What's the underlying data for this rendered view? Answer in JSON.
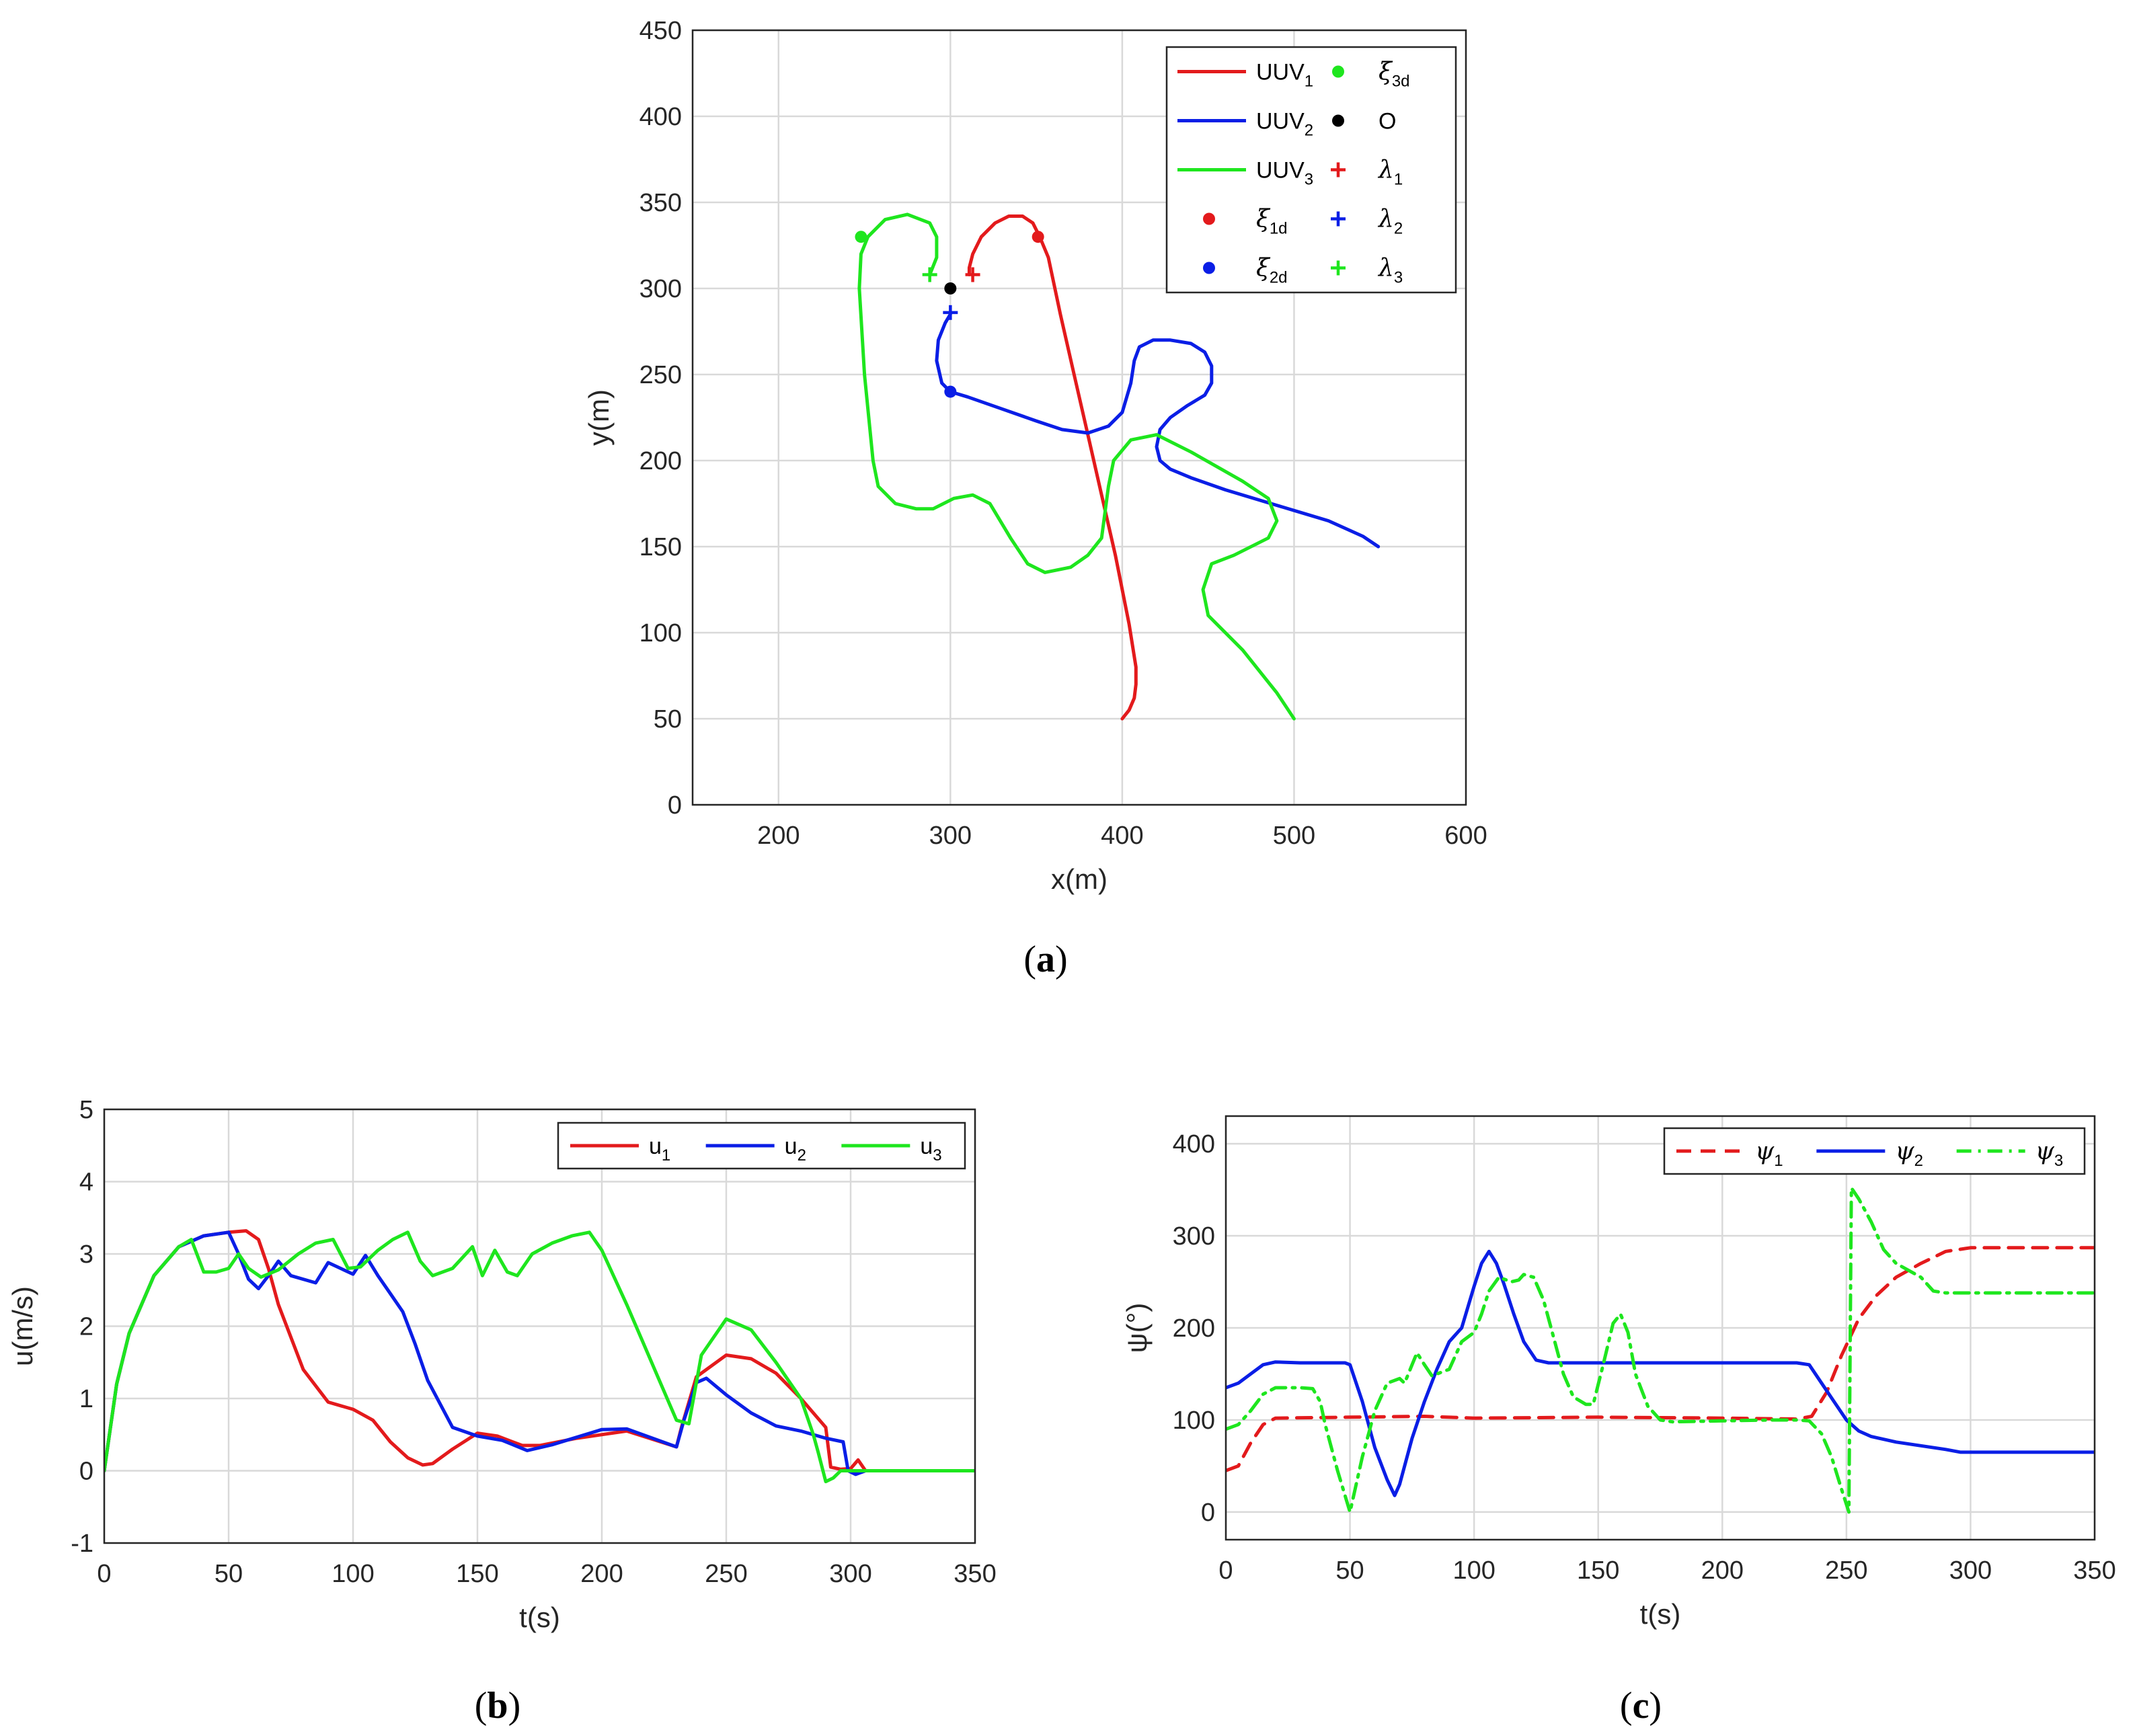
{
  "figure": {
    "colors": {
      "red": "#e31a1c",
      "blue": "#0a1ee6",
      "green": "#1ee61e",
      "black": "#000000"
    }
  },
  "chart_data": [
    {
      "id": "a",
      "type": "line",
      "caption": "a",
      "xlabel": "x(m)",
      "ylabel": "y(m)",
      "xlim": [
        150,
        600
      ],
      "ylim": [
        0,
        450
      ],
      "xticks": [
        200,
        300,
        400,
        500,
        600
      ],
      "yticks": [
        0,
        50,
        100,
        150,
        200,
        250,
        300,
        350,
        400,
        450
      ],
      "grid": true,
      "legend_position": "top-right",
      "legend": [
        {
          "label": "UUV",
          "sub": "1",
          "kind": "line",
          "color": "#e31a1c"
        },
        {
          "label": "UUV",
          "sub": "2",
          "kind": "line",
          "color": "#0a1ee6"
        },
        {
          "label": "UUV",
          "sub": "3",
          "kind": "line",
          "color": "#1ee61e"
        },
        {
          "label": "ξ",
          "sub": "1d",
          "kind": "dot",
          "color": "#e31a1c"
        },
        {
          "label": "ξ",
          "sub": "2d",
          "kind": "dot",
          "color": "#0a1ee6"
        },
        {
          "label": "ξ",
          "sub": "3d",
          "kind": "dot",
          "color": "#1ee61e"
        },
        {
          "label": "O",
          "sub": "",
          "kind": "dot",
          "color": "#000000"
        },
        {
          "label": "λ",
          "sub": "1",
          "kind": "plus",
          "color": "#e31a1c"
        },
        {
          "label": "λ",
          "sub": "2",
          "kind": "plus",
          "color": "#0a1ee6"
        },
        {
          "label": "λ",
          "sub": "3",
          "kind": "plus",
          "color": "#1ee61e"
        }
      ],
      "series": [
        {
          "name": "UUV1",
          "color": "#e31a1c",
          "x": [
            400,
            404,
            407,
            408,
            408,
            404,
            396,
            388,
            380,
            372,
            364,
            357,
            352,
            348,
            342,
            334,
            326,
            318,
            313,
            311,
            311
          ],
          "y": [
            50,
            55,
            62,
            70,
            80,
            105,
            145,
            180,
            215,
            250,
            285,
            318,
            330,
            338,
            342,
            342,
            338,
            330,
            320,
            312,
            308
          ]
        },
        {
          "name": "UUV2",
          "color": "#0a1ee6",
          "x": [
            549,
            540,
            520,
            490,
            460,
            440,
            428,
            422,
            420,
            422,
            428,
            438,
            448,
            452,
            452,
            448,
            440,
            428,
            418,
            410,
            407,
            405,
            400,
            392,
            380,
            365,
            350,
            330,
            310,
            300,
            295,
            292,
            293,
            297,
            300
          ],
          "y": [
            150,
            156,
            165,
            174,
            183,
            190,
            195,
            200,
            208,
            218,
            225,
            232,
            238,
            245,
            255,
            263,
            268,
            270,
            270,
            266,
            258,
            245,
            228,
            220,
            216,
            218,
            223,
            230,
            237,
            240,
            245,
            258,
            270,
            280,
            285
          ]
        },
        {
          "name": "UUV3",
          "color": "#1ee61e",
          "x": [
            500,
            490,
            470,
            450,
            447,
            452,
            465,
            485,
            490,
            485,
            470,
            440,
            420,
            405,
            395,
            392,
            388,
            380,
            370,
            355,
            345,
            335,
            323,
            313,
            302,
            290,
            280,
            268,
            258,
            255,
            250,
            247,
            248,
            252,
            262,
            275,
            288,
            292,
            292,
            288
          ],
          "y": [
            50,
            65,
            90,
            110,
            125,
            140,
            145,
            155,
            165,
            178,
            188,
            205,
            215,
            212,
            200,
            185,
            155,
            145,
            138,
            135,
            140,
            155,
            175,
            180,
            178,
            172,
            172,
            175,
            185,
            200,
            250,
            300,
            320,
            330,
            340,
            343,
            338,
            330,
            318,
            308
          ]
        }
      ],
      "markers": [
        {
          "name": "xi-1d",
          "kind": "dot",
          "color": "#e31a1c",
          "x": 351,
          "y": 330
        },
        {
          "name": "xi-2d",
          "kind": "dot",
          "color": "#0a1ee6",
          "x": 300,
          "y": 240
        },
        {
          "name": "xi-3d",
          "kind": "dot",
          "color": "#1ee61e",
          "x": 248,
          "y": 330
        },
        {
          "name": "origin-O",
          "kind": "dot",
          "color": "#000000",
          "x": 300,
          "y": 300
        },
        {
          "name": "lambda-1",
          "kind": "plus",
          "color": "#e31a1c",
          "x": 313,
          "y": 308
        },
        {
          "name": "lambda-2",
          "kind": "plus",
          "color": "#0a1ee6",
          "x": 300,
          "y": 286
        },
        {
          "name": "lambda-3",
          "kind": "plus",
          "color": "#1ee61e",
          "x": 288,
          "y": 308
        }
      ]
    },
    {
      "id": "b",
      "type": "line",
      "caption": "b",
      "xlabel": "t(s)",
      "ylabel": "u(m/s)",
      "xlim": [
        0,
        350
      ],
      "ylim": [
        -1,
        5
      ],
      "xticks": [
        0,
        50,
        100,
        150,
        200,
        250,
        300,
        350
      ],
      "yticks": [
        -1,
        0,
        1,
        2,
        3,
        4,
        5
      ],
      "grid": true,
      "legend_position": "top-right",
      "legend": [
        {
          "label": "u",
          "sub": "1",
          "kind": "line",
          "color": "#e31a1c"
        },
        {
          "label": "u",
          "sub": "2",
          "kind": "line",
          "color": "#0a1ee6"
        },
        {
          "label": "u",
          "sub": "3",
          "kind": "line",
          "color": "#1ee61e"
        }
      ],
      "series": [
        {
          "name": "u1",
          "color": "#e31a1c",
          "x": [
            0,
            5,
            10,
            20,
            30,
            40,
            50,
            57,
            62,
            66,
            70,
            80,
            90,
            100,
            108,
            115,
            122,
            128,
            132,
            140,
            150,
            158,
            168,
            175,
            190,
            210,
            230,
            232,
            238,
            250,
            260,
            270,
            280,
            290,
            292,
            296,
            300,
            303,
            306,
            310,
            350
          ],
          "y": [
            0,
            1.2,
            1.9,
            2.7,
            3.1,
            3.25,
            3.3,
            3.32,
            3.2,
            2.8,
            2.3,
            1.4,
            0.95,
            0.85,
            0.7,
            0.4,
            0.18,
            0.08,
            0.1,
            0.3,
            0.52,
            0.48,
            0.35,
            0.35,
            0.45,
            0.55,
            0.33,
            0.6,
            1.3,
            1.6,
            1.55,
            1.35,
            1.0,
            0.6,
            0.05,
            0.02,
            0.03,
            0.15,
            0.0,
            0.0,
            0.0
          ]
        },
        {
          "name": "u2",
          "color": "#0a1ee6",
          "x": [
            0,
            5,
            10,
            20,
            30,
            40,
            50,
            54,
            58,
            62,
            66,
            70,
            75,
            85,
            90,
            95,
            100,
            105,
            110,
            115,
            120,
            125,
            130,
            140,
            150,
            160,
            170,
            180,
            200,
            210,
            230,
            233,
            238,
            242,
            250,
            260,
            270,
            280,
            290,
            297,
            299,
            302,
            306,
            310,
            350
          ],
          "y": [
            0,
            1.2,
            1.9,
            2.7,
            3.1,
            3.25,
            3.3,
            3.0,
            2.65,
            2.52,
            2.7,
            2.9,
            2.7,
            2.6,
            2.88,
            2.8,
            2.72,
            2.98,
            2.7,
            2.45,
            2.2,
            1.75,
            1.25,
            0.6,
            0.48,
            0.42,
            0.28,
            0.36,
            0.57,
            0.58,
            0.33,
            0.7,
            1.22,
            1.28,
            1.05,
            0.8,
            0.62,
            0.55,
            0.45,
            0.4,
            0.0,
            -0.05,
            0.0,
            0.0,
            0.0
          ]
        },
        {
          "name": "u3",
          "color": "#1ee61e",
          "x": [
            0,
            5,
            10,
            20,
            30,
            35,
            40,
            45,
            50,
            54,
            58,
            63,
            70,
            78,
            85,
            92,
            98,
            103,
            110,
            116,
            122,
            127,
            132,
            140,
            148,
            152,
            157,
            162,
            166,
            172,
            180,
            188,
            195,
            200,
            210,
            220,
            230,
            235,
            240,
            250,
            260,
            270,
            280,
            285,
            287,
            290,
            293,
            296,
            300,
            350
          ],
          "y": [
            0,
            1.2,
            1.9,
            2.7,
            3.1,
            3.2,
            2.75,
            2.75,
            2.8,
            3.0,
            2.8,
            2.68,
            2.78,
            3.0,
            3.15,
            3.2,
            2.8,
            2.82,
            3.05,
            3.2,
            3.3,
            2.9,
            2.7,
            2.8,
            3.1,
            2.7,
            3.05,
            2.75,
            2.7,
            3.0,
            3.15,
            3.25,
            3.3,
            3.05,
            2.3,
            1.5,
            0.7,
            0.65,
            1.6,
            2.1,
            1.95,
            1.5,
            1.0,
            0.5,
            0.25,
            -0.15,
            -0.1,
            0.0,
            0.0,
            0.0
          ]
        }
      ]
    },
    {
      "id": "c",
      "type": "line",
      "caption": "c",
      "xlabel": "t(s)",
      "ylabel": "ψ(°)",
      "xlim": [
        0,
        350
      ],
      "ylim": [
        -30,
        430
      ],
      "xticks": [
        0,
        50,
        100,
        150,
        200,
        250,
        300,
        350
      ],
      "yticks": [
        0,
        100,
        200,
        300,
        400
      ],
      "grid": true,
      "legend_position": "top-right",
      "legend": [
        {
          "label": "ψ",
          "sub": "1",
          "kind": "dashed",
          "color": "#e31a1c"
        },
        {
          "label": "ψ",
          "sub": "2",
          "kind": "line",
          "color": "#0a1ee6"
        },
        {
          "label": "ψ",
          "sub": "3",
          "kind": "dashdot",
          "color": "#1ee61e"
        }
      ],
      "series": [
        {
          "name": "psi1",
          "color": "#e31a1c",
          "dash": "dashed",
          "x": [
            0,
            5,
            10,
            15,
            20,
            50,
            80,
            100,
            150,
            200,
            230,
            236,
            242,
            248,
            255,
            262,
            270,
            280,
            290,
            300,
            350
          ],
          "y": [
            45,
            50,
            75,
            95,
            102,
            103,
            104,
            102,
            103,
            102,
            101,
            104,
            130,
            170,
            210,
            235,
            255,
            270,
            283,
            287,
            287
          ]
        },
        {
          "name": "psi2",
          "color": "#0a1ee6",
          "dash": "solid",
          "x": [
            0,
            5,
            10,
            15,
            20,
            30,
            40,
            48,
            50,
            55,
            60,
            65,
            68,
            70,
            75,
            80,
            85,
            90,
            95,
            100,
            103,
            106,
            109,
            112,
            116,
            120,
            125,
            130,
            140,
            150,
            160,
            170,
            200,
            230,
            235,
            240,
            245,
            250,
            255,
            260,
            270,
            280,
            290,
            296,
            300,
            350
          ],
          "y": [
            135,
            140,
            150,
            160,
            163,
            162,
            162,
            162,
            160,
            120,
            70,
            35,
            18,
            30,
            80,
            120,
            155,
            185,
            200,
            245,
            270,
            283,
            270,
            248,
            215,
            185,
            165,
            162,
            162,
            162,
            162,
            162,
            162,
            162,
            160,
            140,
            120,
            100,
            88,
            82,
            76,
            72,
            68,
            65,
            65,
            65
          ]
        },
        {
          "name": "psi3",
          "color": "#1ee61e",
          "dash": "dashdot",
          "x": [
            0,
            5,
            10,
            15,
            20,
            30,
            35,
            38,
            40,
            45,
            50,
            55,
            60,
            65,
            70,
            72,
            75,
            77,
            80,
            83,
            85,
            90,
            95,
            100,
            103,
            106,
            110,
            115,
            118,
            120,
            124,
            128,
            132,
            136,
            140,
            145,
            148,
            152,
            156,
            159,
            162,
            165,
            170,
            175,
            180,
            200,
            220,
            230,
            235,
            240,
            244,
            248,
            251,
            252,
            255,
            260,
            265,
            270,
            280,
            285,
            290,
            300,
            350
          ],
          "y": [
            90,
            95,
            110,
            128,
            135,
            135,
            134,
            120,
            95,
            45,
            0,
            60,
            110,
            140,
            145,
            140,
            160,
            173,
            160,
            148,
            150,
            155,
            185,
            195,
            215,
            240,
            255,
            250,
            252,
            258,
            255,
            230,
            190,
            150,
            125,
            117,
            117,
            160,
            205,
            215,
            195,
            150,
            115,
            100,
            98,
            99,
            100,
            100,
            99,
            85,
            60,
            25,
            0,
            352,
            340,
            315,
            285,
            270,
            255,
            240,
            238,
            238,
            238
          ]
        }
      ]
    }
  ]
}
